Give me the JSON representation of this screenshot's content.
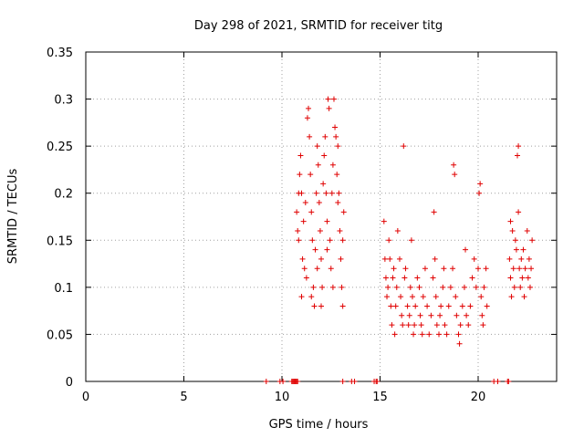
{
  "chart_data": {
    "type": "scatter",
    "title": "Day 298 of 2021, SRMTID for receiver titg",
    "xlabel": "GPS time / hours",
    "ylabel": "SRMTID / TECUs",
    "xlim": [
      0,
      24
    ],
    "ylim": [
      0,
      0.35
    ],
    "xticks": [
      0,
      5,
      10,
      15,
      20
    ],
    "yticks": [
      0,
      0.05,
      0.1,
      0.15,
      0.2,
      0.25,
      0.3,
      0.35
    ],
    "xtick_labels": [
      "0",
      "5",
      "10",
      "15",
      "20"
    ],
    "ytick_labels": [
      "0",
      "0.05",
      "0.1",
      "0.15",
      "0.2",
      "0.25",
      "0.3",
      "0.35"
    ],
    "grid": true,
    "marker": "+",
    "color": "#e00000",
    "series": [
      {
        "points": [
          [
            9.2,
            0
          ],
          [
            9.9,
            0
          ],
          [
            10.05,
            0
          ],
          [
            10.5,
            0
          ],
          [
            10.55,
            0
          ],
          [
            10.6,
            0
          ],
          [
            10.65,
            0
          ],
          [
            10.7,
            0
          ],
          [
            10.75,
            0
          ],
          [
            10.8,
            0
          ],
          [
            13.1,
            0
          ],
          [
            13.55,
            0
          ],
          [
            13.7,
            0
          ],
          [
            14.7,
            0
          ],
          [
            14.8,
            0
          ],
          [
            14.85,
            0
          ],
          [
            20.8,
            0
          ],
          [
            21.0,
            0
          ],
          [
            21.5,
            0
          ],
          [
            21.55,
            0
          ],
          [
            10.75,
            0.18
          ],
          [
            10.8,
            0.16
          ],
          [
            10.85,
            0.15
          ],
          [
            10.9,
            0.22
          ],
          [
            10.95,
            0.24
          ],
          [
            11.0,
            0.2
          ],
          [
            11.05,
            0.13
          ],
          [
            11.1,
            0.17
          ],
          [
            11.15,
            0.12
          ],
          [
            11.2,
            0.19
          ],
          [
            11.3,
            0.28
          ],
          [
            11.35,
            0.29
          ],
          [
            11.4,
            0.26
          ],
          [
            11.45,
            0.22
          ],
          [
            11.5,
            0.18
          ],
          [
            11.55,
            0.15
          ],
          [
            11.6,
            0.1
          ],
          [
            11.65,
            0.08
          ],
          [
            11.7,
            0.14
          ],
          [
            11.75,
            0.2
          ],
          [
            11.8,
            0.25
          ],
          [
            11.85,
            0.23
          ],
          [
            11.9,
            0.19
          ],
          [
            11.95,
            0.16
          ],
          [
            12.0,
            0.13
          ],
          [
            12.05,
            0.1
          ],
          [
            12.1,
            0.21
          ],
          [
            12.15,
            0.24
          ],
          [
            12.2,
            0.26
          ],
          [
            12.25,
            0.2
          ],
          [
            12.3,
            0.17
          ],
          [
            12.35,
            0.3
          ],
          [
            12.4,
            0.29
          ],
          [
            12.45,
            0.15
          ],
          [
            12.5,
            0.12
          ],
          [
            12.55,
            0.2
          ],
          [
            12.6,
            0.23
          ],
          [
            12.65,
            0.3
          ],
          [
            12.7,
            0.27
          ],
          [
            12.75,
            0.26
          ],
          [
            12.8,
            0.22
          ],
          [
            12.85,
            0.19
          ],
          [
            12.9,
            0.2
          ],
          [
            12.95,
            0.16
          ],
          [
            13.0,
            0.13
          ],
          [
            13.05,
            0.1
          ],
          [
            13.1,
            0.08
          ],
          [
            13.15,
            0.18
          ],
          [
            11.0,
            0.09
          ],
          [
            11.25,
            0.11
          ],
          [
            11.5,
            0.09
          ],
          [
            11.8,
            0.12
          ],
          [
            12.0,
            0.08
          ],
          [
            12.3,
            0.14
          ],
          [
            12.6,
            0.1
          ],
          [
            12.85,
            0.25
          ],
          [
            13.1,
            0.15
          ],
          [
            10.85,
            0.2
          ],
          [
            15.2,
            0.17
          ],
          [
            15.25,
            0.13
          ],
          [
            15.3,
            0.11
          ],
          [
            15.35,
            0.09
          ],
          [
            15.4,
            0.1
          ],
          [
            15.45,
            0.15
          ],
          [
            15.5,
            0.13
          ],
          [
            15.55,
            0.08
          ],
          [
            15.6,
            0.06
          ],
          [
            15.65,
            0.11
          ],
          [
            15.7,
            0.12
          ],
          [
            15.75,
            0.05
          ],
          [
            15.8,
            0.08
          ],
          [
            15.85,
            0.1
          ],
          [
            15.9,
            0.16
          ],
          [
            16.0,
            0.13
          ],
          [
            16.05,
            0.09
          ],
          [
            16.1,
            0.07
          ],
          [
            16.15,
            0.06
          ],
          [
            16.2,
            0.25
          ],
          [
            16.25,
            0.11
          ],
          [
            16.3,
            0.12
          ],
          [
            16.4,
            0.08
          ],
          [
            16.45,
            0.06
          ],
          [
            16.5,
            0.07
          ],
          [
            16.55,
            0.1
          ],
          [
            16.6,
            0.15
          ],
          [
            16.65,
            0.09
          ],
          [
            16.7,
            0.05
          ],
          [
            16.75,
            0.06
          ],
          [
            16.8,
            0.08
          ],
          [
            16.9,
            0.11
          ],
          [
            17.0,
            0.1
          ],
          [
            17.05,
            0.07
          ],
          [
            17.1,
            0.06
          ],
          [
            17.15,
            0.05
          ],
          [
            17.2,
            0.09
          ],
          [
            17.3,
            0.12
          ],
          [
            17.4,
            0.08
          ],
          [
            17.5,
            0.05
          ],
          [
            17.6,
            0.07
          ],
          [
            17.7,
            0.11
          ],
          [
            17.75,
            0.18
          ],
          [
            17.8,
            0.13
          ],
          [
            17.85,
            0.09
          ],
          [
            17.9,
            0.06
          ],
          [
            18.0,
            0.05
          ],
          [
            18.05,
            0.07
          ],
          [
            18.1,
            0.08
          ],
          [
            18.2,
            0.1
          ],
          [
            18.25,
            0.12
          ],
          [
            18.3,
            0.06
          ],
          [
            18.4,
            0.05
          ],
          [
            18.5,
            0.08
          ],
          [
            18.6,
            0.1
          ],
          [
            18.7,
            0.12
          ],
          [
            18.75,
            0.23
          ],
          [
            18.8,
            0.22
          ],
          [
            18.85,
            0.09
          ],
          [
            18.9,
            0.07
          ],
          [
            19.0,
            0.05
          ],
          [
            19.05,
            0.04
          ],
          [
            19.1,
            0.06
          ],
          [
            19.2,
            0.08
          ],
          [
            19.3,
            0.1
          ],
          [
            19.35,
            0.14
          ],
          [
            19.4,
            0.07
          ],
          [
            19.5,
            0.06
          ],
          [
            19.6,
            0.08
          ],
          [
            19.7,
            0.11
          ],
          [
            19.8,
            0.13
          ],
          [
            19.9,
            0.1
          ],
          [
            20.0,
            0.12
          ],
          [
            20.05,
            0.2
          ],
          [
            20.1,
            0.21
          ],
          [
            20.15,
            0.09
          ],
          [
            20.2,
            0.07
          ],
          [
            20.25,
            0.06
          ],
          [
            20.3,
            0.1
          ],
          [
            20.4,
            0.12
          ],
          [
            20.45,
            0.08
          ],
          [
            21.6,
            0.13
          ],
          [
            21.65,
            0.11
          ],
          [
            21.7,
            0.09
          ],
          [
            21.75,
            0.16
          ],
          [
            21.8,
            0.12
          ],
          [
            21.85,
            0.1
          ],
          [
            21.9,
            0.15
          ],
          [
            21.95,
            0.14
          ],
          [
            22.0,
            0.24
          ],
          [
            22.05,
            0.25
          ],
          [
            22.1,
            0.12
          ],
          [
            22.15,
            0.1
          ],
          [
            22.2,
            0.13
          ],
          [
            22.25,
            0.11
          ],
          [
            22.3,
            0.14
          ],
          [
            22.35,
            0.09
          ],
          [
            22.4,
            0.12
          ],
          [
            22.5,
            0.16
          ],
          [
            22.55,
            0.11
          ],
          [
            22.6,
            0.13
          ],
          [
            22.65,
            0.1
          ],
          [
            22.7,
            0.12
          ],
          [
            22.75,
            0.15
          ],
          [
            21.65,
            0.17
          ],
          [
            22.05,
            0.18
          ]
        ]
      }
    ]
  }
}
